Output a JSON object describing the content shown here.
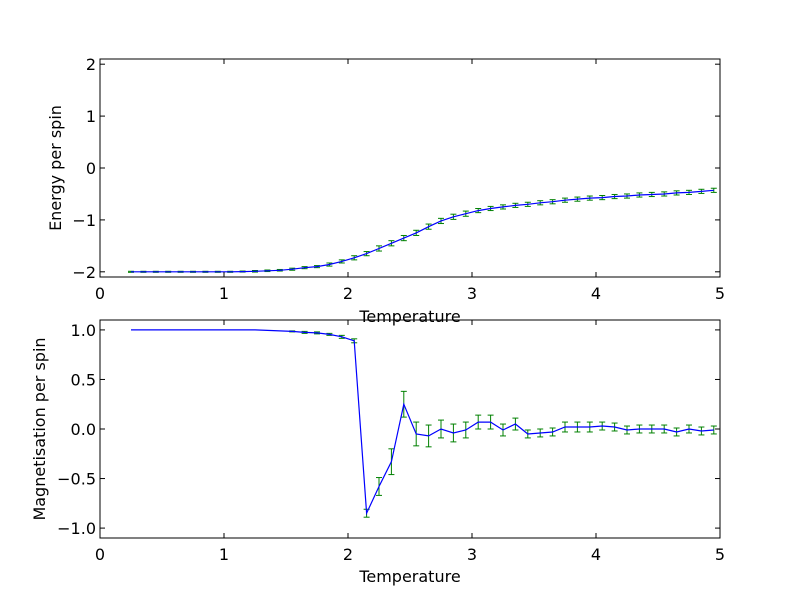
{
  "chart_data": [
    {
      "type": "line",
      "xlabel": "Temperature",
      "ylabel": "Energy per spin",
      "xlim": [
        0,
        5
      ],
      "ylim": [
        -2.1,
        2.1
      ],
      "xticks": [
        0,
        1,
        2,
        3,
        4,
        5
      ],
      "yticks": [
        -2,
        -1,
        0,
        1,
        2
      ],
      "grid": false,
      "colors": {
        "line": "#0000ff",
        "errorbar": "#008000"
      },
      "series": [
        {
          "x": [
            0.25,
            0.35,
            0.45,
            0.55,
            0.65,
            0.75,
            0.85,
            0.95,
            1.05,
            1.15,
            1.25,
            1.35,
            1.45,
            1.55,
            1.65,
            1.75,
            1.85,
            1.95,
            2.05,
            2.15,
            2.25,
            2.35,
            2.45,
            2.55,
            2.65,
            2.75,
            2.85,
            2.95,
            3.05,
            3.15,
            3.25,
            3.35,
            3.45,
            3.55,
            3.65,
            3.75,
            3.85,
            3.95,
            4.05,
            4.15,
            4.25,
            4.35,
            4.45,
            4.55,
            4.65,
            4.75,
            4.85,
            4.95
          ],
          "y": [
            -2.0,
            -2.0,
            -2.0,
            -2.0,
            -2.0,
            -2.0,
            -2.0,
            -2.0,
            -2.0,
            -1.995,
            -1.99,
            -1.98,
            -1.97,
            -1.95,
            -1.92,
            -1.9,
            -1.86,
            -1.8,
            -1.73,
            -1.65,
            -1.55,
            -1.45,
            -1.35,
            -1.25,
            -1.13,
            -1.02,
            -0.94,
            -0.88,
            -0.82,
            -0.78,
            -0.75,
            -0.72,
            -0.7,
            -0.67,
            -0.65,
            -0.62,
            -0.6,
            -0.58,
            -0.57,
            -0.55,
            -0.54,
            -0.52,
            -0.51,
            -0.5,
            -0.48,
            -0.47,
            -0.45,
            -0.43
          ],
          "err": [
            0.01,
            0.01,
            0.01,
            0.01,
            0.01,
            0.01,
            0.01,
            0.01,
            0.01,
            0.01,
            0.015,
            0.015,
            0.015,
            0.02,
            0.02,
            0.02,
            0.03,
            0.03,
            0.04,
            0.04,
            0.05,
            0.05,
            0.05,
            0.05,
            0.05,
            0.05,
            0.05,
            0.05,
            0.04,
            0.04,
            0.04,
            0.04,
            0.04,
            0.04,
            0.04,
            0.04,
            0.04,
            0.04,
            0.04,
            0.04,
            0.04,
            0.04,
            0.04,
            0.04,
            0.04,
            0.04,
            0.04,
            0.04
          ]
        }
      ]
    },
    {
      "type": "line",
      "xlabel": "Temperature",
      "ylabel": "Magnetisation per spin",
      "xlim": [
        0,
        5
      ],
      "ylim": [
        -1.1,
        1.1
      ],
      "xticks": [
        0,
        1,
        2,
        3,
        4,
        5
      ],
      "yticks": [
        -1.0,
        -0.5,
        0.0,
        0.5,
        1.0
      ],
      "ytick_labels": [
        "−1.0",
        "−0.5",
        "0.0",
        "0.5",
        "1.0"
      ],
      "grid": false,
      "colors": {
        "line": "#0000ff",
        "errorbar": "#008000"
      },
      "series": [
        {
          "x": [
            0.25,
            0.35,
            0.45,
            0.55,
            0.65,
            0.75,
            0.85,
            0.95,
            1.05,
            1.15,
            1.25,
            1.35,
            1.45,
            1.55,
            1.65,
            1.75,
            1.85,
            1.95,
            2.05,
            2.15,
            2.25,
            2.35,
            2.45,
            2.55,
            2.65,
            2.75,
            2.85,
            2.95,
            3.05,
            3.15,
            3.25,
            3.35,
            3.45,
            3.55,
            3.65,
            3.75,
            3.85,
            3.95,
            4.05,
            4.15,
            4.25,
            4.35,
            4.45,
            4.55,
            4.65,
            4.75,
            4.85,
            4.95
          ],
          "y": [
            1.0,
            1.0,
            1.0,
            1.0,
            1.0,
            1.0,
            1.0,
            1.0,
            1.0,
            1.0,
            1.0,
            0.995,
            0.99,
            0.985,
            0.975,
            0.97,
            0.955,
            0.93,
            0.89,
            -0.85,
            -0.58,
            -0.33,
            0.25,
            -0.05,
            -0.07,
            0.0,
            -0.04,
            -0.01,
            0.07,
            0.07,
            -0.01,
            0.05,
            -0.05,
            -0.04,
            -0.03,
            0.02,
            0.02,
            0.02,
            0.03,
            0.02,
            -0.01,
            0.0,
            0.0,
            0.0,
            -0.03,
            0.0,
            -0.02,
            -0.01
          ],
          "err": [
            0.0,
            0.0,
            0.0,
            0.0,
            0.0,
            0.0,
            0.0,
            0.0,
            0.0,
            0.0,
            0.0,
            0.0,
            0.0,
            0.005,
            0.01,
            0.01,
            0.01,
            0.015,
            0.02,
            0.04,
            0.09,
            0.13,
            0.13,
            0.12,
            0.11,
            0.09,
            0.09,
            0.08,
            0.07,
            0.07,
            0.06,
            0.06,
            0.04,
            0.04,
            0.04,
            0.05,
            0.05,
            0.05,
            0.04,
            0.04,
            0.04,
            0.04,
            0.04,
            0.04,
            0.04,
            0.04,
            0.04,
            0.04
          ]
        }
      ]
    }
  ]
}
